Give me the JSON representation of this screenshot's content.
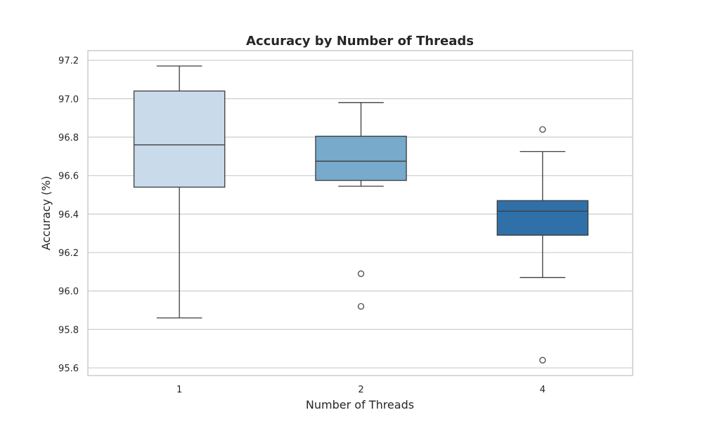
{
  "chart_data": {
    "type": "box",
    "title": "Accuracy by Number of Threads",
    "xlabel": "Number of Threads",
    "ylabel": "Accuracy (%)",
    "ylim": [
      95.56,
      97.25
    ],
    "yticks": [
      "95.6",
      "95.8",
      "96.0",
      "96.2",
      "96.4",
      "96.6",
      "96.8",
      "97.0",
      "97.2"
    ],
    "grid": true,
    "categories": [
      "1",
      "2",
      "4"
    ],
    "boxes": [
      {
        "category": "1",
        "whisker_low": 95.86,
        "q1": 96.54,
        "median": 96.76,
        "q3": 97.04,
        "whisker_high": 97.17,
        "outliers": [],
        "color": "#c9daeb"
      },
      {
        "category": "2",
        "whisker_low": 96.545,
        "q1": 96.575,
        "median": 96.675,
        "q3": 96.805,
        "whisker_high": 96.98,
        "outliers": [
          96.09,
          95.92
        ],
        "color": "#77aacb"
      },
      {
        "category": "4",
        "whisker_low": 96.07,
        "q1": 96.29,
        "median": 96.415,
        "q3": 96.47,
        "whisker_high": 96.725,
        "outliers": [
          96.84,
          95.64
        ],
        "color": "#3070a8"
      }
    ]
  }
}
